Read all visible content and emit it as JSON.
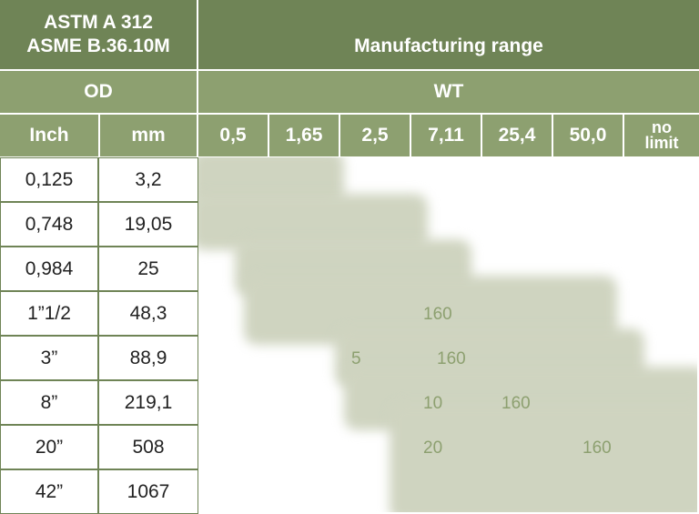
{
  "header": {
    "standard_line1": "ASTM A 312",
    "standard_line2": "ASME B.36.10M",
    "manufacturing_range": "Manufacturing range",
    "od": "OD",
    "wt": "WT",
    "inch": "Inch",
    "mm": "mm"
  },
  "wt_columns": [
    "0,5",
    "1,65",
    "2,5",
    "7,11",
    "25,4",
    "50,0",
    "no limit"
  ],
  "rows": [
    {
      "inch": "0,125",
      "mm": "3,2"
    },
    {
      "inch": "0,748",
      "mm": "19,05"
    },
    {
      "inch": "0,984",
      "mm": "25"
    },
    {
      "inch": "1”1/2",
      "mm": "48,3"
    },
    {
      "inch": "3”",
      "mm": "88,9"
    },
    {
      "inch": "8”",
      "mm": "219,1"
    },
    {
      "inch": "20”",
      "mm": "508"
    },
    {
      "inch": "42”",
      "mm": "1067"
    }
  ],
  "range_labels": [
    "160",
    "5",
    "160",
    "10",
    "160",
    "20",
    "160"
  ],
  "colors": {
    "header_dark": "#6f8456",
    "header_mid": "#8da070",
    "range_fill": "#cfd4c0"
  }
}
